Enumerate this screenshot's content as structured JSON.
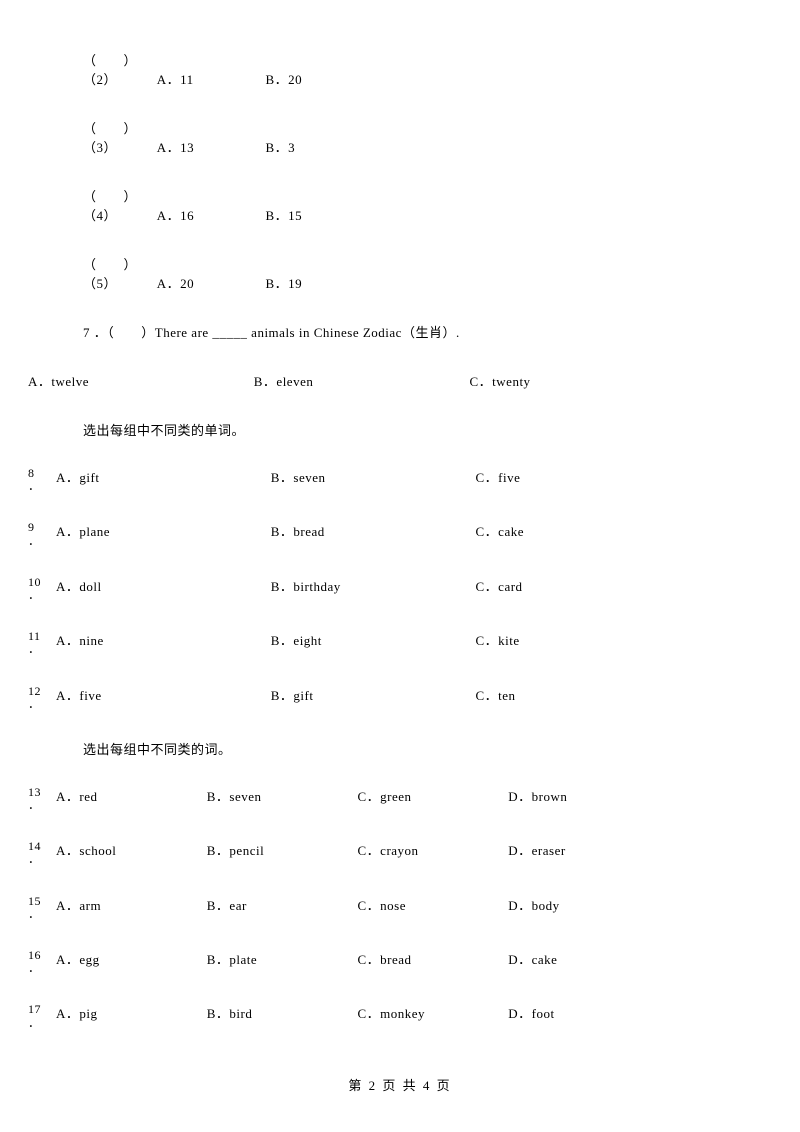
{
  "listening": [
    {
      "paren": "（　　）（2）",
      "a": "A．11",
      "b": "B．20"
    },
    {
      "paren": "（　　）（3）",
      "a": "A．13",
      "b": "B．3"
    },
    {
      "paren": "（　　）（4）",
      "a": "A．16",
      "b": "B．15"
    },
    {
      "paren": "（　　）（5）",
      "a": "A．20",
      "b": "B．19"
    }
  ],
  "q7": {
    "stem": "7 ．（　　）There are _____ animals in Chinese Zodiac（生肖）.",
    "a": "A．twelve",
    "b": "B．eleven",
    "c": "C．twenty"
  },
  "section1_title": "选出每组中不同类的单词。",
  "group1": [
    {
      "num": "8",
      "a": "A．gift",
      "b": "B．seven",
      "c": "C．five"
    },
    {
      "num": "9",
      "a": "A．plane",
      "b": "B．bread",
      "c": "C．cake"
    },
    {
      "num": "10",
      "a": "A．doll",
      "b": "B．birthday",
      "c": "C．card"
    },
    {
      "num": "11",
      "a": "A．nine",
      "b": "B．eight",
      "c": "C．kite"
    },
    {
      "num": "12",
      "a": "A．five",
      "b": "B．gift",
      "c": "C．ten"
    }
  ],
  "section2_title": "选出每组中不同类的词。",
  "group2": [
    {
      "num": "13",
      "a": "A．red",
      "b": "B．seven",
      "c": "C．green",
      "d": "D．brown"
    },
    {
      "num": "14",
      "a": "A．school",
      "b": "B．pencil",
      "c": "C．crayon",
      "d": "D．eraser"
    },
    {
      "num": "15",
      "a": "A．arm",
      "b": "B．ear",
      "c": "C．nose",
      "d": "D．body"
    },
    {
      "num": "16",
      "a": "A．egg",
      "b": "B．plate",
      "c": "C．bread",
      "d": "D．cake"
    },
    {
      "num": "17",
      "a": "A．pig",
      "b": "B．bird",
      "c": "C．monkey",
      "d": "D．foot"
    }
  ],
  "footer": "第 2 页 共 4 页"
}
